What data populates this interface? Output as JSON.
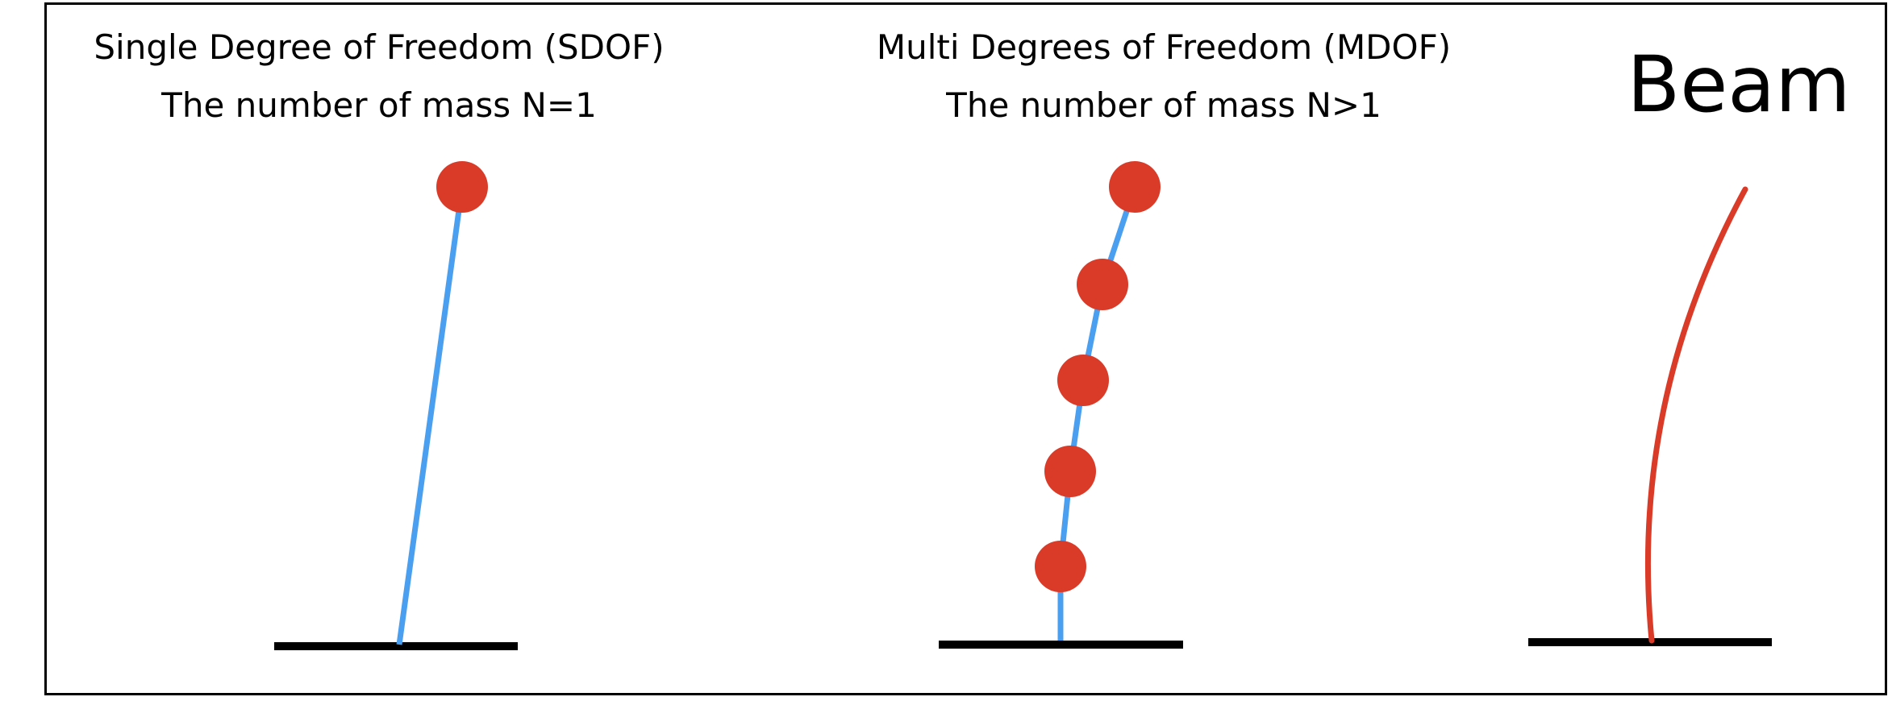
{
  "colors": {
    "ground": "#000000",
    "column": "#4a9ff0",
    "mass": "#da3a28",
    "beam": "#da3a28",
    "frame": "#000000"
  },
  "panels": {
    "sdof": {
      "title": "Single Degree of Freedom (SDOF)",
      "subtitle": "The number of mass N=1",
      "mass_count": 1
    },
    "mdof": {
      "title": "Multi Degrees of Freedom  (MDOF)",
      "subtitle": "The number of mass N>1",
      "mass_count": 5
    },
    "beam": {
      "title": "Beam"
    }
  }
}
